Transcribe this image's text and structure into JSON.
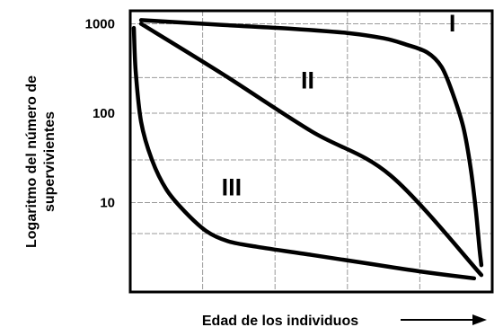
{
  "chart_data": {
    "type": "line",
    "title": "",
    "xlabel": "Edad de los individuos",
    "ylabel_lines": [
      "Logaritmo del número de",
      "supervivientes"
    ],
    "yscale": "log",
    "y_ticks": [
      {
        "value": 1000,
        "label": "1000"
      },
      {
        "value": 100,
        "label": "100"
      },
      {
        "value": 10,
        "label": "10"
      }
    ],
    "x_relative_range": [
      0,
      1
    ],
    "ylim": [
      1,
      1400
    ],
    "grid": true,
    "xlabel_arrow": true,
    "line_color": "#000000",
    "grid_color": "#999999",
    "series": [
      {
        "name": "I",
        "label_pos": [
          0.89,
          820
        ],
        "points": [
          [
            0.03,
            1100
          ],
          [
            0.15,
            1030
          ],
          [
            0.3,
            950
          ],
          [
            0.45,
            880
          ],
          [
            0.6,
            790
          ],
          [
            0.7,
            690
          ],
          [
            0.76,
            590
          ],
          [
            0.82,
            480
          ],
          [
            0.86,
            330
          ],
          [
            0.89,
            170
          ],
          [
            0.92,
            70
          ],
          [
            0.94,
            25
          ],
          [
            0.955,
            8
          ],
          [
            0.965,
            3
          ],
          [
            0.97,
            2
          ]
        ]
      },
      {
        "name": "II",
        "label_pos": [
          0.49,
          190
        ],
        "points": [
          [
            0.03,
            1000
          ],
          [
            0.25,
            283
          ],
          [
            0.5,
            63
          ],
          [
            0.72,
            20
          ],
          [
            0.97,
            1.55
          ]
        ]
      },
      {
        "name": "III",
        "label_pos": [
          0.28,
          12
        ],
        "points": [
          [
            0.01,
            900
          ],
          [
            0.015,
            300
          ],
          [
            0.03,
            80
          ],
          [
            0.06,
            30
          ],
          [
            0.1,
            14
          ],
          [
            0.15,
            8
          ],
          [
            0.21,
            4.8
          ],
          [
            0.27,
            3.7
          ],
          [
            0.35,
            3.2
          ],
          [
            0.5,
            2.6
          ],
          [
            0.65,
            2.1
          ],
          [
            0.8,
            1.7
          ],
          [
            0.95,
            1.42
          ]
        ]
      }
    ]
  }
}
